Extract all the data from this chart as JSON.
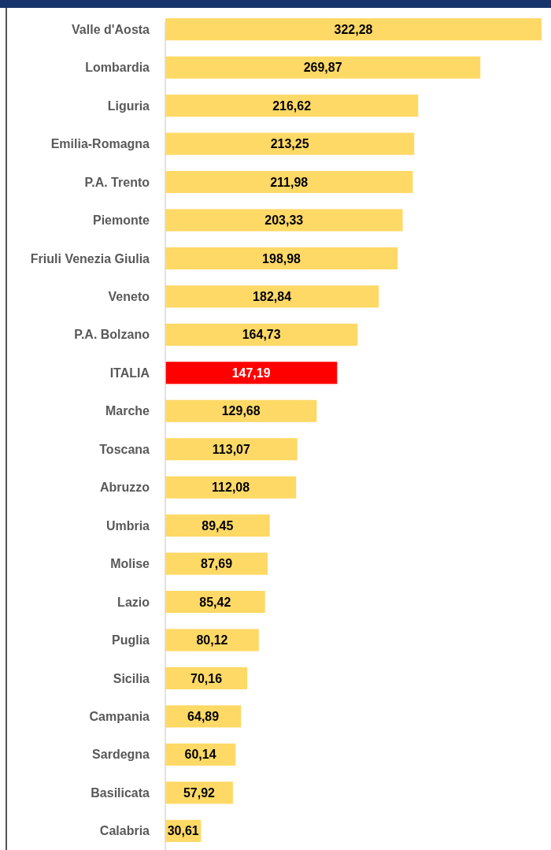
{
  "chart_data": {
    "type": "bar",
    "orientation": "horizontal",
    "categories": [
      "Valle d'Aosta",
      "Lombardia",
      "Liguria",
      "Emilia-Romagna",
      "P.A. Trento",
      "Piemonte",
      "Friuli Venezia Giulia",
      "Veneto",
      "P.A. Bolzano",
      "ITALIA",
      "Marche",
      "Toscana",
      "Abruzzo",
      "Umbria",
      "Molise",
      "Lazio",
      "Puglia",
      "Sicilia",
      "Campania",
      "Sardegna",
      "Basilicata",
      "Calabria"
    ],
    "values": [
      322.28,
      269.87,
      216.62,
      213.25,
      211.98,
      203.33,
      198.98,
      182.84,
      164.73,
      147.19,
      129.68,
      113.07,
      112.08,
      89.45,
      87.69,
      85.42,
      80.12,
      70.16,
      64.89,
      60.14,
      57.92,
      30.61
    ],
    "value_labels": [
      "322,28",
      "269,87",
      "216,62",
      "213,25",
      "211,98",
      "203,33",
      "198,98",
      "182,84",
      "164,73",
      "147,19",
      "129,68",
      "113,07",
      "112,08",
      "89,45",
      "87,69",
      "85,42",
      "80,12",
      "70,16",
      "64,89",
      "60,14",
      "57,92",
      "30,61"
    ],
    "colors": [
      "#ffd966",
      "#ffd966",
      "#ffd966",
      "#ffd966",
      "#ffd966",
      "#ffd966",
      "#ffd966",
      "#ffd966",
      "#ffd966",
      "#ff0000",
      "#ffd966",
      "#ffd966",
      "#ffd966",
      "#ffd966",
      "#ffd966",
      "#ffd966",
      "#ffd966",
      "#ffd966",
      "#ffd966",
      "#ffd966",
      "#ffd966",
      "#ffd966"
    ]
  }
}
